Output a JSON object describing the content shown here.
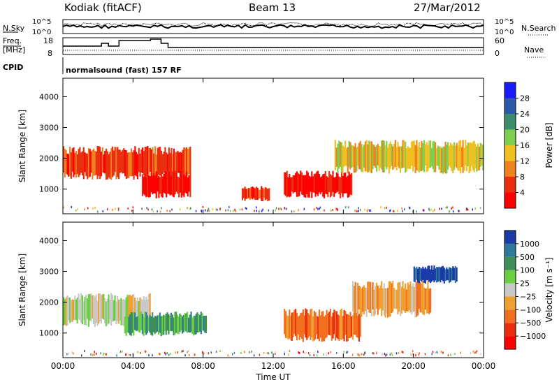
{
  "header": {
    "station": "Kodiak (fitACF)",
    "beam": "Beam 13",
    "date": "27/Mar/2012"
  },
  "top_panel": {
    "left_label": "N.Sky",
    "right_label": "N.Search",
    "left_ticks": [
      "10^5",
      "10^0"
    ],
    "right_ticks": [
      "10^5",
      "10^0"
    ]
  },
  "freq_panel": {
    "left_label_line1": "Freq.",
    "left_label_line2": "[MHz]",
    "right_label": "Nave",
    "left_ticks": [
      "18",
      "8"
    ],
    "right_ticks": [
      "60",
      "0"
    ]
  },
  "cpid": {
    "label": "CPID",
    "value": "normalsound (fast) 157 RF"
  },
  "chart_data": [
    {
      "type": "heatmap",
      "title": "",
      "xlabel": "Time UT",
      "ylabel": "Slant Range [km]",
      "x_ticks": [
        "00:00",
        "04:00",
        "08:00",
        "12:00",
        "16:00",
        "20:00",
        "00:00"
      ],
      "y_ticks": [
        1000,
        2000,
        3000,
        4000
      ],
      "ylim": [
        200,
        4600
      ],
      "xlim_hours": [
        0,
        24
      ],
      "colorbar": {
        "label": "Power [dB]",
        "ticks": [
          "4",
          "8",
          "12",
          "16",
          "20",
          "24",
          "28"
        ],
        "colors": [
          "#1a1aff",
          "#2d5aa8",
          "#3c8c6e",
          "#7dcf4f",
          "#f0c020",
          "#f08020",
          "#e83010",
          "#ff0000"
        ]
      },
      "echo_regions": [
        {
          "t0": 0.0,
          "t1": 7.3,
          "r0": 1300,
          "r1": 2400,
          "level": 6
        },
        {
          "t0": 4.5,
          "t1": 7.3,
          "r0": 700,
          "r1": 1600,
          "level": 7
        },
        {
          "t0": 10.2,
          "t1": 11.8,
          "r0": 600,
          "r1": 1100,
          "level": 6
        },
        {
          "t0": 12.6,
          "t1": 16.5,
          "r0": 700,
          "r1": 1600,
          "level": 7
        },
        {
          "t0": 15.5,
          "t1": 24.0,
          "r0": 1500,
          "r1": 2600,
          "level": 4
        }
      ]
    },
    {
      "type": "heatmap",
      "title": "",
      "xlabel": "Time UT",
      "ylabel": "Slant Range [km]",
      "x_ticks": [
        "00:00",
        "04:00",
        "08:00",
        "12:00",
        "16:00",
        "20:00",
        "00:00"
      ],
      "y_ticks": [
        1000,
        2000,
        3000,
        4000
      ],
      "ylim": [
        200,
        4600
      ],
      "xlim_hours": [
        0,
        24
      ],
      "colorbar": {
        "label": "Velocity [m s⁻¹]",
        "ticks": [
          "1000",
          "500",
          "100",
          "25",
          "−25",
          "−100",
          "−500",
          "−1000"
        ],
        "colors": [
          "#1a3aa8",
          "#2e7a9a",
          "#3f8f5a",
          "#6ad040",
          "#c8c8c8",
          "#f0a030",
          "#f07020",
          "#e83010",
          "#ff0000"
        ]
      },
      "echo_regions": [
        {
          "t0": 0.0,
          "t1": 5.0,
          "r0": 1200,
          "r1": 2300,
          "level": 4
        },
        {
          "t0": 3.5,
          "t1": 8.2,
          "r0": 900,
          "r1": 1700,
          "level": 2
        },
        {
          "t0": 12.6,
          "t1": 17.0,
          "r0": 700,
          "r1": 1800,
          "level": 6
        },
        {
          "t0": 16.5,
          "t1": 21.0,
          "r0": 1500,
          "r1": 2700,
          "level": 5
        },
        {
          "t0": 20.0,
          "t1": 22.5,
          "r0": 2600,
          "r1": 3200,
          "level": 0
        }
      ]
    }
  ]
}
